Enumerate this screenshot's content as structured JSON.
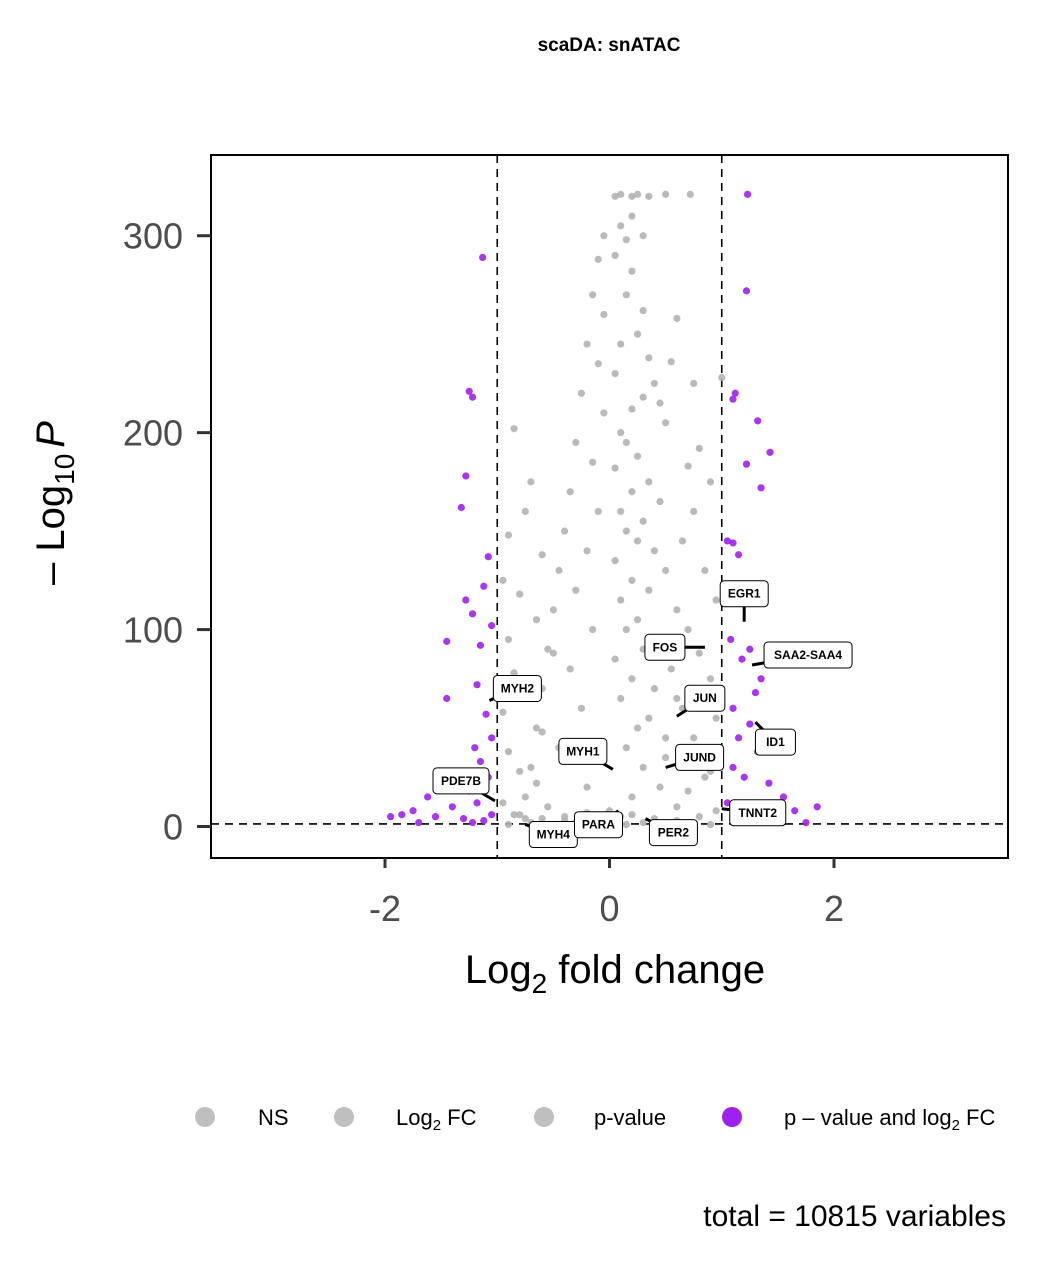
{
  "chart_data": {
    "type": "scatter",
    "title": "scaDA: snATAC",
    "xlabel_main": "Log",
    "xlabel_sub": "2",
    "xlabel_rest": " fold change",
    "ylabel_prefix": "– Log",
    "ylabel_sub": "10",
    "ylabel_italic": "P",
    "xlim": [
      -3.55,
      3.55
    ],
    "ylim": [
      -16,
      341
    ],
    "x_ticks": [
      -2,
      0,
      2
    ],
    "x_tick_labels": [
      "-2",
      "0",
      "2"
    ],
    "y_ticks": [
      0,
      100,
      200,
      300
    ],
    "y_tick_labels": [
      "0",
      "100",
      "200",
      "300"
    ],
    "fc_cutoff": 1,
    "p_cutoff_y": 1.3,
    "caption": "total = 10815 variables",
    "colors": {
      "ns": "#b3b3b3",
      "sig": "#a020f0",
      "cutoff": "#000000"
    },
    "legend": [
      {
        "text": "NS",
        "color": "#bfbfbf"
      },
      {
        "text": "Log",
        "sub": "2",
        "rest": " FC",
        "color": "#bfbfbf"
      },
      {
        "text": "p-value",
        "color": "#bfbfbf"
      },
      {
        "text": "p – value and log",
        "sub": "2",
        "rest": " FC",
        "color": "#a020f0"
      }
    ],
    "ns_points": [
      [
        0.05,
        320
      ],
      [
        0.1,
        321
      ],
      [
        0.2,
        320
      ],
      [
        0.25,
        321
      ],
      [
        0.35,
        320
      ],
      [
        0.5,
        321
      ],
      [
        0.72,
        321
      ],
      [
        0.1,
        305
      ],
      [
        0.15,
        298
      ],
      [
        0.2,
        310
      ],
      [
        0.3,
        300
      ],
      [
        0.05,
        290
      ],
      [
        0.2,
        282
      ],
      [
        0.15,
        270
      ],
      [
        0.3,
        262
      ],
      [
        0.25,
        250
      ],
      [
        0.1,
        245
      ],
      [
        0.35,
        238
      ],
      [
        0.05,
        230
      ],
      [
        0.4,
        225
      ],
      [
        0.3,
        218
      ],
      [
        0.2,
        212
      ],
      [
        0.5,
        205
      ],
      [
        0.1,
        200
      ],
      [
        0.15,
        195
      ],
      [
        0.25,
        188
      ],
      [
        0.05,
        182
      ],
      [
        0.35,
        175
      ],
      [
        0.2,
        170
      ],
      [
        0.45,
        165
      ],
      [
        0.1,
        160
      ],
      [
        0.3,
        155
      ],
      [
        0.15,
        150
      ],
      [
        0.25,
        145
      ],
      [
        0.4,
        140
      ],
      [
        0.05,
        135
      ],
      [
        0.5,
        130
      ],
      [
        0.2,
        125
      ],
      [
        0.35,
        120
      ],
      [
        0.1,
        115
      ],
      [
        0.6,
        110
      ],
      [
        0.25,
        105
      ],
      [
        0.15,
        100
      ],
      [
        0.45,
        95
      ],
      [
        0.3,
        90
      ],
      [
        0.05,
        85
      ],
      [
        0.55,
        80
      ],
      [
        0.2,
        75
      ],
      [
        0.4,
        70
      ],
      [
        0.1,
        65
      ],
      [
        0.65,
        60
      ],
      [
        0.35,
        55
      ],
      [
        0.25,
        50
      ],
      [
        0.75,
        45
      ],
      [
        0.15,
        40
      ],
      [
        0.5,
        35
      ],
      [
        0.3,
        30
      ],
      [
        0.85,
        25
      ],
      [
        0.45,
        20
      ],
      [
        0.2,
        15
      ],
      [
        0.6,
        10
      ],
      [
        0.1,
        5
      ],
      [
        -0.05,
        300
      ],
      [
        -0.1,
        288
      ],
      [
        -0.15,
        270
      ],
      [
        -0.05,
        260
      ],
      [
        -0.2,
        245
      ],
      [
        -0.1,
        235
      ],
      [
        -0.25,
        220
      ],
      [
        -0.05,
        210
      ],
      [
        -0.3,
        195
      ],
      [
        -0.15,
        185
      ],
      [
        -0.35,
        170
      ],
      [
        -0.1,
        160
      ],
      [
        -0.4,
        150
      ],
      [
        -0.2,
        140
      ],
      [
        -0.45,
        130
      ],
      [
        -0.3,
        120
      ],
      [
        -0.5,
        110
      ],
      [
        -0.15,
        100
      ],
      [
        -0.55,
        90
      ],
      [
        -0.35,
        80
      ],
      [
        -0.6,
        70
      ],
      [
        -0.25,
        60
      ],
      [
        -0.65,
        50
      ],
      [
        -0.45,
        40
      ],
      [
        -0.7,
        30
      ],
      [
        -0.2,
        20
      ],
      [
        -0.75,
        15
      ],
      [
        -0.55,
        10
      ],
      [
        -0.85,
        6
      ],
      [
        -0.4,
        3
      ],
      [
        0.6,
        258
      ],
      [
        0.55,
        236
      ],
      [
        0.45,
        215
      ],
      [
        0.7,
        183
      ],
      [
        0.8,
        192
      ],
      [
        0.9,
        175
      ],
      [
        0.75,
        160
      ],
      [
        0.65,
        145
      ],
      [
        0.85,
        130
      ],
      [
        0.95,
        115
      ],
      [
        0.7,
        100
      ],
      [
        0.8,
        88
      ],
      [
        0.9,
        75
      ],
      [
        0.6,
        65
      ],
      [
        0.95,
        55
      ],
      [
        0.5,
        45
      ],
      [
        0.8,
        38
      ],
      [
        0.9,
        28
      ],
      [
        0.7,
        18
      ],
      [
        0.95,
        8
      ],
      [
        -0.85,
        202
      ],
      [
        -0.7,
        175
      ],
      [
        -0.75,
        160
      ],
      [
        -0.9,
        148
      ],
      [
        -0.6,
        138
      ],
      [
        -0.95,
        125
      ],
      [
        -0.8,
        118
      ],
      [
        -0.65,
        105
      ],
      [
        -0.9,
        95
      ],
      [
        -0.5,
        88
      ],
      [
        -0.85,
        78
      ],
      [
        -0.7,
        68
      ],
      [
        -0.95,
        58
      ],
      [
        -0.6,
        48
      ],
      [
        -0.9,
        38
      ],
      [
        -0.8,
        28
      ],
      [
        -0.65,
        22
      ],
      [
        -0.95,
        12
      ],
      [
        -0.75,
        4
      ],
      [
        0.05,
        2
      ],
      [
        0.15,
        1
      ],
      [
        -0.1,
        1
      ],
      [
        0.3,
        2
      ],
      [
        -0.3,
        2
      ],
      [
        0.5,
        1
      ],
      [
        -0.5,
        1
      ],
      [
        0.7,
        2
      ],
      [
        -0.7,
        2
      ],
      [
        0.9,
        1
      ],
      [
        -0.9,
        1
      ],
      [
        0.0,
        8
      ],
      [
        0.2,
        6
      ],
      [
        -0.2,
        7
      ],
      [
        0.4,
        4
      ],
      [
        -0.4,
        5
      ],
      [
        0.6,
        3
      ],
      [
        -0.6,
        4
      ],
      [
        0.8,
        5
      ],
      [
        -0.8,
        6
      ],
      [
        0.75,
        225
      ],
      [
        1.0,
        228
      ]
    ],
    "sig_points": [
      [
        -1.13,
        289
      ],
      [
        -1.25,
        221
      ],
      [
        -1.22,
        218
      ],
      [
        -1.28,
        178
      ],
      [
        -1.32,
        162
      ],
      [
        -1.08,
        137
      ],
      [
        -1.12,
        122
      ],
      [
        -1.28,
        115
      ],
      [
        -1.22,
        108
      ],
      [
        -1.05,
        102
      ],
      [
        -1.15,
        92
      ],
      [
        -1.45,
        94
      ],
      [
        -1.18,
        72
      ],
      [
        -1.45,
        65
      ],
      [
        -1.1,
        57
      ],
      [
        -1.05,
        45
      ],
      [
        -1.2,
        40
      ],
      [
        -1.15,
        33
      ],
      [
        -1.08,
        25
      ],
      [
        -1.35,
        22
      ],
      [
        -1.5,
        20
      ],
      [
        -1.62,
        15
      ],
      [
        -1.75,
        8
      ],
      [
        -1.85,
        6
      ],
      [
        -1.95,
        5
      ],
      [
        -1.4,
        10
      ],
      [
        -1.55,
        5
      ],
      [
        -1.3,
        4
      ],
      [
        -1.22,
        2
      ],
      [
        -1.12,
        3
      ],
      [
        -1.05,
        6
      ],
      [
        -1.18,
        12
      ],
      [
        -1.25,
        18
      ],
      [
        -1.7,
        2
      ],
      [
        1.23,
        321
      ],
      [
        1.22,
        272
      ],
      [
        1.12,
        220
      ],
      [
        1.1,
        217
      ],
      [
        1.32,
        206
      ],
      [
        1.43,
        190
      ],
      [
        1.22,
        184
      ],
      [
        1.35,
        172
      ],
      [
        1.05,
        145
      ],
      [
        1.1,
        144
      ],
      [
        1.15,
        138
      ],
      [
        1.22,
        115
      ],
      [
        1.08,
        95
      ],
      [
        1.25,
        90
      ],
      [
        1.18,
        85
      ],
      [
        1.35,
        75
      ],
      [
        1.3,
        68
      ],
      [
        1.1,
        60
      ],
      [
        1.25,
        52
      ],
      [
        1.15,
        45
      ],
      [
        1.32,
        38
      ],
      [
        1.1,
        30
      ],
      [
        1.2,
        25
      ],
      [
        1.42,
        22
      ],
      [
        1.55,
        15
      ],
      [
        1.65,
        8
      ],
      [
        1.85,
        10
      ],
      [
        1.75,
        2
      ],
      [
        1.15,
        5
      ],
      [
        1.05,
        12
      ],
      [
        1.1,
        4
      ],
      [
        1.3,
        3
      ],
      [
        1.5,
        5
      ]
    ],
    "gene_labels": [
      {
        "gene": "EGR1",
        "x": 1.2,
        "y": 104
      },
      {
        "gene": "FOS",
        "x": 0.85,
        "y": 91
      },
      {
        "gene": "SAA2-SAA4",
        "x": 1.27,
        "y": 82
      },
      {
        "gene": "JUN",
        "x": 0.6,
        "y": 56
      },
      {
        "gene": "ID1",
        "x": 1.3,
        "y": 53
      },
      {
        "gene": "MYH2",
        "x": -1.07,
        "y": 64
      },
      {
        "gene": "MYH1",
        "x": 0.03,
        "y": 29
      },
      {
        "gene": "JUND",
        "x": 0.5,
        "y": 30
      },
      {
        "gene": "PDE7B",
        "x": -1.02,
        "y": 13
      },
      {
        "gene": "TNNT2",
        "x": 1.0,
        "y": 9
      },
      {
        "gene": "MYH4",
        "x": -0.75,
        "y": 1
      },
      {
        "gene": "PARA",
        "x": 0.08,
        "y": 8
      },
      {
        "gene": "PER2",
        "x": 0.32,
        "y": 4
      }
    ]
  }
}
